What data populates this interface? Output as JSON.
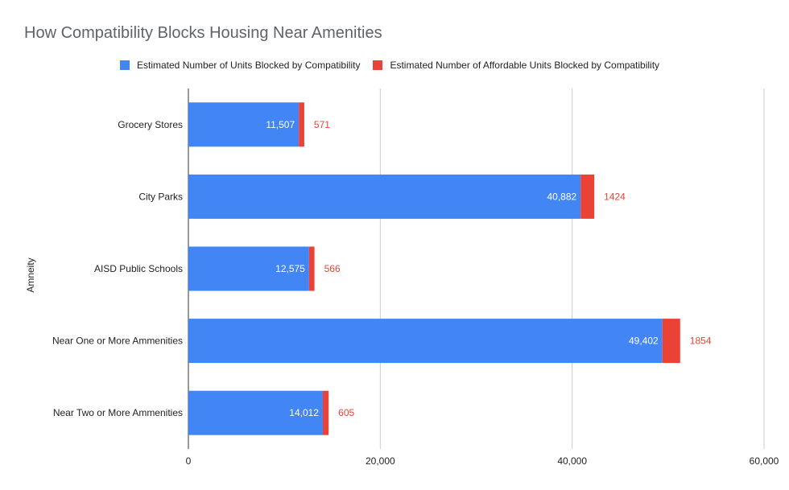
{
  "colors": {
    "main": "#4285f4",
    "affordable": "#ea4335",
    "grid": "#cccccc",
    "axis": "#333333"
  },
  "chart_data": {
    "type": "bar",
    "orientation": "horizontal",
    "stacked": true,
    "title": "How Compatibility Blocks Housing Near Amenities",
    "ylabel": "Amneity",
    "xlabel": "",
    "xlim": [
      0,
      60000
    ],
    "x_ticks": [
      "0",
      "20,000",
      "40,000",
      "60,000"
    ],
    "x_tick_values": [
      0,
      20000,
      40000,
      60000
    ],
    "grid": true,
    "legend_position": "top",
    "categories": [
      "Grocery Stores",
      "City Parks",
      "AISD Public Schools",
      "Near One or More Ammenities",
      "Near Two or More Ammenities"
    ],
    "series": [
      {
        "name": "Estimated Number of Units Blocked by Compatibility",
        "values": [
          11507,
          40882,
          12575,
          49402,
          14012
        ],
        "labels": [
          "11,507",
          "40,882",
          "12,575",
          "49,402",
          "14,012"
        ]
      },
      {
        "name": "Estimated Number of Affordable Units Blocked by Compatibility",
        "values": [
          571,
          1424,
          566,
          1854,
          605
        ],
        "labels": [
          "571",
          "1424",
          "566",
          "1854",
          "605"
        ]
      }
    ]
  }
}
